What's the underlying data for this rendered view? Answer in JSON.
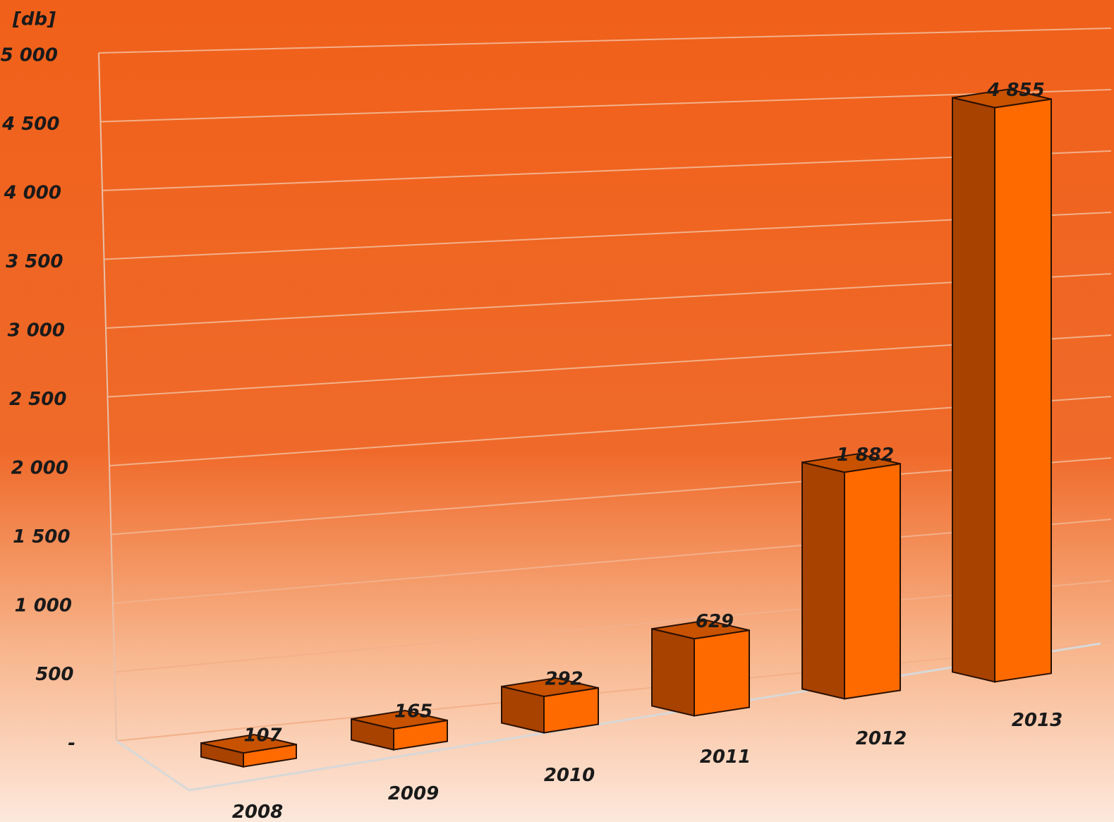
{
  "chart_data": {
    "type": "bar3d",
    "y_label": "[db]",
    "categories": [
      "2008",
      "2009",
      "2010",
      "2011",
      "2012",
      "2013"
    ],
    "values": [
      107,
      165,
      292,
      629,
      1882,
      4855
    ],
    "value_labels": [
      "107",
      "165",
      "292",
      "629",
      "1 882",
      "4 855"
    ],
    "color": "#ff6a00",
    "side_color": "#a84200",
    "top_color": "#c85200",
    "ylim": [
      0,
      5000
    ],
    "yticks": [
      {
        "value": 0,
        "label": "-"
      },
      500,
      {
        "value": 1000,
        "label": "1 000"
      },
      {
        "value": 1500,
        "label": "1 500"
      },
      {
        "value": 2000,
        "label": "2 000"
      },
      {
        "value": 2500,
        "label": "2 500"
      },
      {
        "value": 3000,
        "label": "3 000"
      },
      {
        "value": 3500,
        "label": "3 500"
      },
      {
        "value": 4000,
        "label": "4 000"
      },
      {
        "value": 4500,
        "label": "4 500"
      },
      {
        "value": 5000,
        "label": "5 000"
      }
    ],
    "grid": true
  }
}
